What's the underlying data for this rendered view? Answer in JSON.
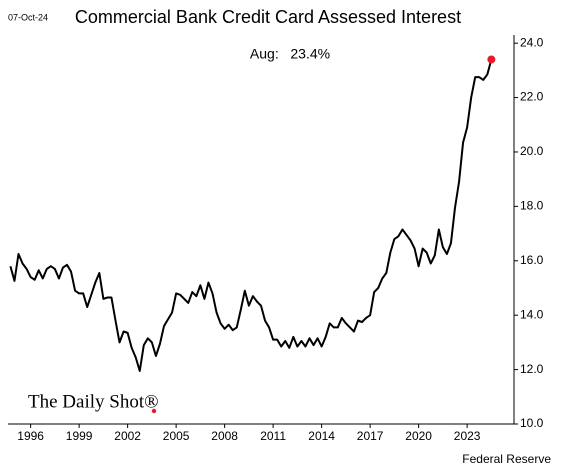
{
  "chart_data": {
    "type": "line",
    "title": "Commercial Bank Credit Card Assessed Interest",
    "date": "07-Oct-24",
    "annotation": "Aug:   23.4%",
    "source": "Federal Reserve",
    "logo": "The Daily Shot®",
    "color": "#000000",
    "end_marker_color": "#e8192c",
    "x": [
      1994.75,
      1995,
      1995.25,
      1995.5,
      1995.75,
      1996,
      1996.25,
      1996.5,
      1996.75,
      1997,
      1997.25,
      1997.5,
      1997.75,
      1998,
      1998.25,
      1998.5,
      1998.75,
      1999,
      1999.25,
      1999.5,
      1999.75,
      2000,
      2000.25,
      2000.5,
      2000.75,
      2001,
      2001.25,
      2001.5,
      2001.75,
      2002,
      2002.25,
      2002.5,
      2002.75,
      2003,
      2003.25,
      2003.5,
      2003.75,
      2004,
      2004.25,
      2004.5,
      2004.75,
      2005,
      2005.25,
      2005.5,
      2005.75,
      2006,
      2006.25,
      2006.5,
      2006.75,
      2007,
      2007.25,
      2007.5,
      2007.75,
      2008,
      2008.25,
      2008.5,
      2008.75,
      2009,
      2009.25,
      2009.5,
      2009.75,
      2010,
      2010.25,
      2010.5,
      2010.75,
      2011,
      2011.25,
      2011.5,
      2011.75,
      2012,
      2012.25,
      2012.5,
      2012.75,
      2013,
      2013.25,
      2013.5,
      2013.75,
      2014,
      2014.25,
      2014.5,
      2014.75,
      2015,
      2015.25,
      2015.5,
      2015.75,
      2016,
      2016.25,
      2016.5,
      2016.75,
      2017,
      2017.25,
      2017.5,
      2017.75,
      2018,
      2018.25,
      2018.5,
      2018.75,
      2019,
      2019.25,
      2019.5,
      2019.75,
      2020,
      2020.25,
      2020.5,
      2020.75,
      2021,
      2021.25,
      2021.5,
      2021.75,
      2022,
      2022.25,
      2022.5,
      2022.75,
      2023,
      2023.25,
      2023.5,
      2023.75,
      2024,
      2024.25,
      2024.5
    ],
    "values": [
      15.8,
      15.26,
      16.25,
      15.9,
      15.7,
      15.4,
      15.3,
      15.65,
      15.35,
      15.7,
      15.8,
      15.7,
      15.35,
      15.75,
      15.85,
      15.6,
      14.9,
      14.8,
      14.8,
      14.3,
      14.75,
      15.2,
      15.55,
      14.6,
      14.65,
      14.65,
      13.8,
      13.0,
      13.4,
      13.35,
      12.8,
      12.45,
      11.95,
      12.9,
      13.15,
      13.0,
      12.5,
      12.95,
      13.6,
      13.85,
      14.1,
      14.8,
      14.75,
      14.6,
      14.45,
      14.85,
      14.7,
      15.1,
      14.6,
      15.2,
      14.8,
      14.1,
      13.7,
      13.5,
      13.65,
      13.45,
      13.55,
      14.2,
      14.9,
      14.35,
      14.7,
      14.5,
      14.35,
      13.8,
      13.55,
      13.1,
      13.1,
      12.85,
      13.05,
      12.8,
      13.2,
      12.85,
      13.05,
      12.85,
      13.15,
      12.9,
      13.15,
      12.85,
      13.2,
      13.7,
      13.55,
      13.55,
      13.9,
      13.7,
      13.55,
      13.4,
      13.8,
      13.75,
      13.9,
      14.0,
      14.85,
      15.0,
      15.35,
      15.55,
      16.3,
      16.8,
      16.9,
      17.15,
      16.95,
      16.75,
      16.45,
      15.8,
      16.45,
      16.3,
      15.9,
      16.2,
      17.15,
      16.5,
      16.25,
      16.65,
      17.95,
      18.9,
      20.35,
      20.9,
      22.0,
      22.75,
      22.75,
      22.65,
      22.85,
      23.4
    ],
    "xlim": [
      1994.6,
      2025.9
    ],
    "xticks": [
      1996,
      1999,
      2002,
      2005,
      2008,
      2011,
      2014,
      2017,
      2020,
      2023
    ],
    "ylim": [
      10,
      24.3
    ],
    "yticks": [
      {
        "value": 10,
        "label": "10.0"
      },
      {
        "value": 12,
        "label": "12.0"
      },
      {
        "value": 14,
        "label": "14.0"
      },
      {
        "value": 16,
        "label": "16.0"
      },
      {
        "value": 18,
        "label": "18.0"
      },
      {
        "value": 20,
        "label": "20.0"
      },
      {
        "value": 22,
        "label": "22.0"
      },
      {
        "value": 24,
        "label": "24.0"
      }
    ]
  }
}
